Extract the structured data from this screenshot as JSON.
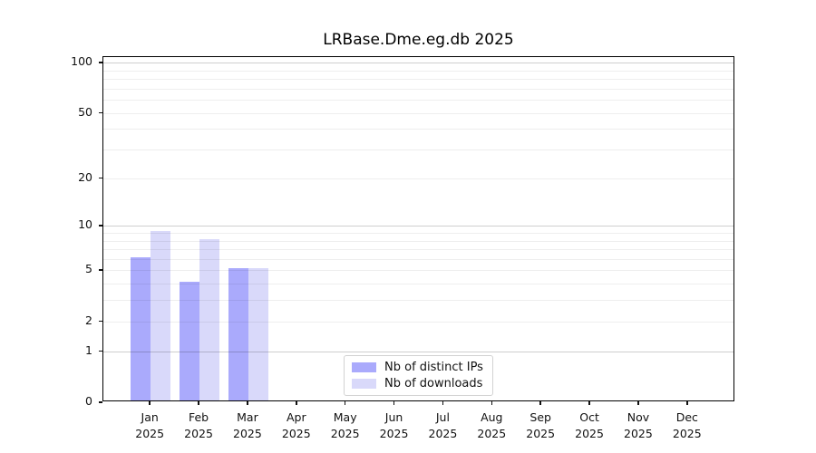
{
  "chart_data": {
    "type": "bar",
    "title": "LRBase.Dme.eg.db 2025",
    "categories": [
      "Jan 2025",
      "Feb 2025",
      "Mar 2025",
      "Apr 2025",
      "May 2025",
      "Jun 2025",
      "Jul 2025",
      "Aug 2025",
      "Sep 2025",
      "Oct 2025",
      "Nov 2025",
      "Dec 2025"
    ],
    "series": [
      {
        "name": "Nb of distinct IPs",
        "color": "#aaaafc",
        "values": [
          6,
          4,
          5,
          0,
          0,
          0,
          0,
          0,
          0,
          0,
          0,
          0
        ]
      },
      {
        "name": "Nb of downloads",
        "color": "#d9d9fa",
        "values": [
          9,
          8,
          5,
          0,
          0,
          0,
          0,
          0,
          0,
          0,
          0,
          0
        ]
      }
    ],
    "xlabel": "",
    "ylabel": "",
    "yscale": "log1p",
    "ylim": [
      0,
      108
    ],
    "yticks": [
      0,
      1,
      2,
      5,
      10,
      20,
      50,
      100
    ],
    "grid_minor": [
      2,
      3,
      4,
      5,
      6,
      7,
      8,
      9,
      20,
      30,
      40,
      50,
      60,
      70,
      80,
      90
    ],
    "grid_major": [
      1,
      10,
      100
    ],
    "grid": "horizontal, drawn above bars",
    "legend_position": "lower center, inside plot"
  },
  "legend": {
    "items": [
      {
        "label": "Nb of distinct IPs",
        "color": "#aaaafc"
      },
      {
        "label": "Nb of downloads",
        "color": "#d9d9fa"
      }
    ]
  },
  "colors": {
    "background": "#ffffff",
    "axis": "#000000",
    "bar_distinct_ips": "#aaaafc",
    "bar_downloads": "#d9d9fa",
    "grid_major": "#cccccc",
    "grid_minor": "#ededed",
    "legend_border": "#d2d2d2"
  }
}
